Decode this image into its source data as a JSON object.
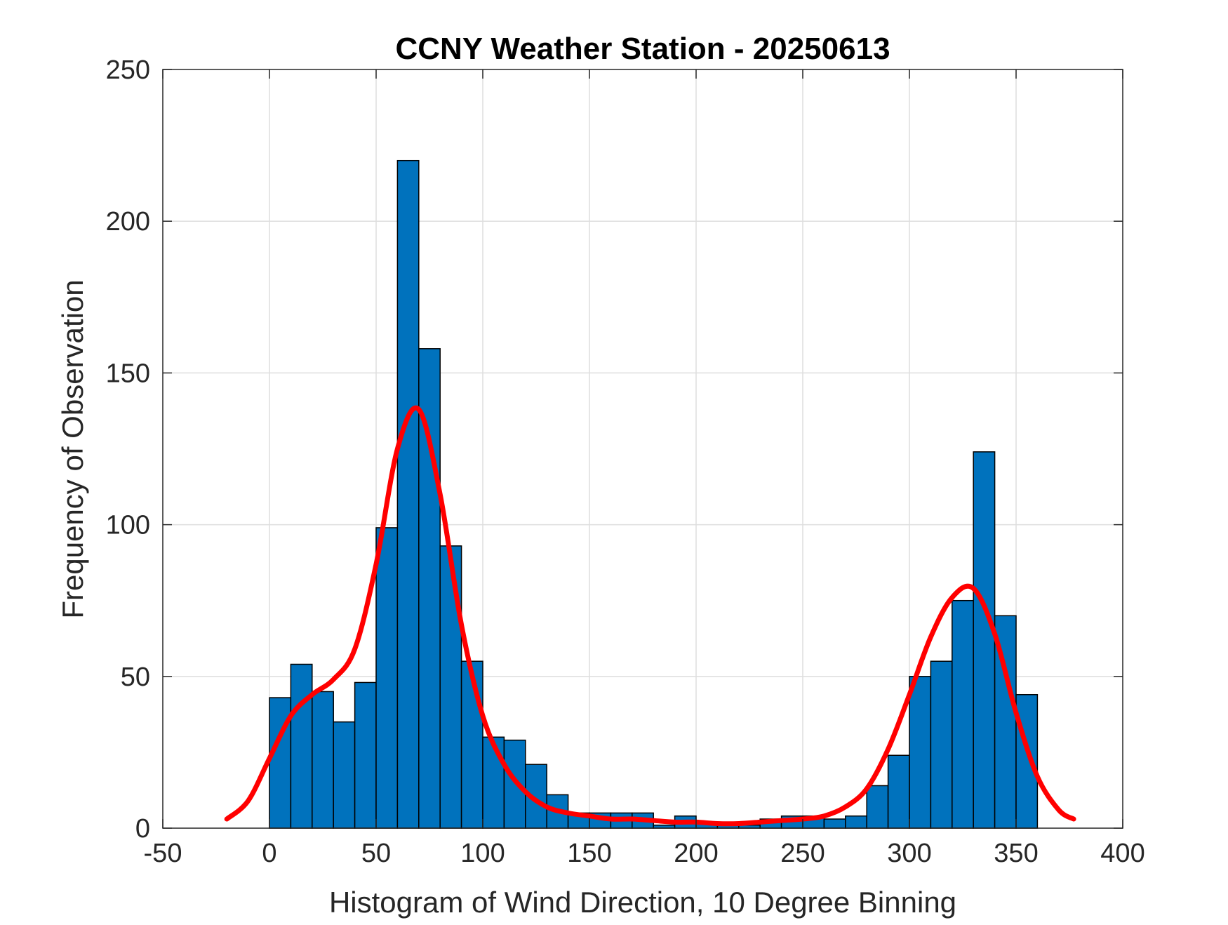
{
  "chart_data": {
    "type": "bar",
    "title": "CCNY Weather Station - 20250613",
    "xlabel": "Histogram of Wind Direction, 10 Degree Binning",
    "ylabel": "Frequency of Observation",
    "xlim": [
      -50,
      400
    ],
    "ylim": [
      0,
      250
    ],
    "x_ticks": [
      "-50",
      "0",
      "50",
      "100",
      "150",
      "200",
      "250",
      "300",
      "350",
      "400"
    ],
    "y_ticks": [
      "0",
      "50",
      "100",
      "150",
      "200",
      "250"
    ],
    "grid": true,
    "bin_width": 10,
    "bin_edges_start": [
      0,
      10,
      20,
      30,
      40,
      50,
      60,
      70,
      80,
      90,
      100,
      110,
      120,
      130,
      140,
      150,
      160,
      170,
      180,
      190,
      200,
      210,
      220,
      230,
      240,
      250,
      260,
      270,
      280,
      290,
      300,
      310,
      320,
      330,
      340,
      350
    ],
    "values": [
      43,
      54,
      45,
      35,
      48,
      99,
      220,
      158,
      93,
      55,
      30,
      29,
      21,
      11,
      5,
      5,
      5,
      5,
      1,
      4,
      2,
      2,
      1,
      3,
      4,
      4,
      3,
      4,
      14,
      24,
      50,
      55,
      75,
      124,
      70,
      44
    ],
    "series": [
      {
        "type": "line",
        "x": [
          -20,
          -10,
          0,
          10,
          20,
          30,
          40,
          50,
          60,
          70,
          80,
          90,
          100,
          110,
          120,
          130,
          140,
          150,
          160,
          170,
          180,
          190,
          200,
          210,
          220,
          230,
          240,
          250,
          260,
          270,
          280,
          290,
          300,
          310,
          320,
          330,
          340,
          350,
          360,
          370,
          377
        ],
        "y": [
          3,
          9,
          23,
          37,
          44,
          49,
          59,
          87,
          125,
          138,
          110,
          67,
          37,
          21,
          12,
          7,
          5,
          4,
          3,
          3,
          2.5,
          2,
          2,
          1.5,
          1.5,
          2,
          2.5,
          3,
          4,
          7,
          13,
          26,
          44,
          63,
          76,
          79,
          64,
          38,
          17,
          6,
          3
        ]
      }
    ],
    "colors": {
      "bar_fill": "#0072BD",
      "bar_edge": "#000000",
      "fit_line": "#FF0000",
      "grid": "#DEDEDE",
      "axes": "#262626",
      "background": "#FFFFFF"
    }
  }
}
